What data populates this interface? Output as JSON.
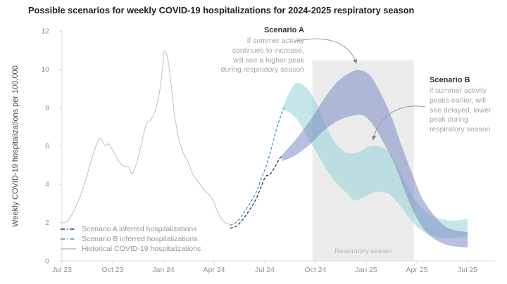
{
  "title": "Possible scenarios for weekly COVID-19 hospitalizations for 2024-2025 respiratory season",
  "annotations": {
    "scenario_a": {
      "title": "Scenario A",
      "body": "if summer activity\ncontinues to increase,\nwill see a higher peak\nduring respiratory season"
    },
    "scenario_b": {
      "title": "Scenario B",
      "body": "if summer activity\npeaks earlier, will\nsee delayed, lower\npeak during\nrespiratory season"
    }
  },
  "legend": {
    "items": [
      {
        "label": "Scenario A inferred hospitalizations",
        "color": "#22344a",
        "style": "dashed"
      },
      {
        "label": "Scenario B inferred hospitalizations",
        "color": "#4796c2",
        "style": "dashed"
      },
      {
        "label": "Historical COVID-19 hospitalizations",
        "color": "#b9bcbe",
        "style": "solid"
      }
    ]
  },
  "chart_data": {
    "type": "line",
    "title": "Possible scenarios for weekly COVID-19 hospitalizations for 2024-2025 respiratory season",
    "xlabel": "",
    "ylabel": "Weekly COVID-19 hospitalizations per 100,000",
    "x_unit": "months since Jul 2023",
    "ylim": [
      0,
      12
    ],
    "y_ticks": [
      0,
      2,
      4,
      6,
      8,
      10,
      12
    ],
    "x_ticks": [
      {
        "t": 0,
        "label": "Jul 23"
      },
      {
        "t": 3,
        "label": "Oct 23"
      },
      {
        "t": 6,
        "label": "Jan 24"
      },
      {
        "t": 9,
        "label": "Apr 24"
      },
      {
        "t": 12,
        "label": "Jul 24"
      },
      {
        "t": 15,
        "label": "Oct 24"
      },
      {
        "t": 18,
        "label": "Jan 25"
      },
      {
        "t": 21,
        "label": "Apr 25"
      },
      {
        "t": 24,
        "label": "Jul 25"
      }
    ],
    "respiratory_season": {
      "label": "Respiratory season",
      "t0": 14.82,
      "t1": 20.82,
      "color": "#ececec"
    },
    "series": [
      {
        "name": "Scenario B projected range",
        "type": "band",
        "color": "#8ed0d6",
        "opacity": 0.5,
        "top": [
          [
            13.1,
            8.1
          ],
          [
            13.8,
            9.25
          ],
          [
            14.5,
            9.0
          ],
          [
            15.0,
            8.3
          ],
          [
            15.5,
            7.3
          ],
          [
            16.0,
            6.4
          ],
          [
            16.5,
            5.85
          ],
          [
            17.0,
            5.6
          ],
          [
            17.6,
            5.7
          ],
          [
            18.1,
            5.95
          ],
          [
            18.6,
            6.0
          ],
          [
            19.2,
            5.8
          ],
          [
            19.7,
            5.2
          ],
          [
            20.2,
            4.3
          ],
          [
            20.8,
            3.3
          ],
          [
            21.3,
            2.75
          ],
          [
            21.9,
            2.35
          ],
          [
            22.6,
            2.15
          ],
          [
            23.3,
            2.1
          ],
          [
            24.0,
            2.2
          ]
        ],
        "bottom": [
          [
            13.1,
            7.9
          ],
          [
            13.8,
            7.5
          ],
          [
            14.5,
            6.5
          ],
          [
            15.1,
            5.6
          ],
          [
            15.7,
            4.7
          ],
          [
            16.3,
            4.0
          ],
          [
            16.9,
            3.5
          ],
          [
            17.3,
            3.15
          ],
          [
            17.8,
            3.3
          ],
          [
            18.4,
            3.55
          ],
          [
            18.9,
            3.6
          ],
          [
            19.4,
            3.45
          ],
          [
            19.9,
            3.0
          ],
          [
            20.5,
            2.3
          ],
          [
            21.1,
            1.7
          ],
          [
            21.8,
            1.35
          ],
          [
            22.6,
            1.2
          ],
          [
            23.3,
            1.2
          ],
          [
            24.0,
            1.3
          ]
        ]
      },
      {
        "name": "Scenario A projected range",
        "type": "band",
        "color": "#7c8cc4",
        "opacity": 0.55,
        "top": [
          [
            13.0,
            5.5
          ],
          [
            13.8,
            6.3
          ],
          [
            14.7,
            7.35
          ],
          [
            15.5,
            8.45
          ],
          [
            16.3,
            9.35
          ],
          [
            17.1,
            9.85
          ],
          [
            17.6,
            9.95
          ],
          [
            18.2,
            9.7
          ],
          [
            18.8,
            8.85
          ],
          [
            19.5,
            7.5
          ],
          [
            20.1,
            6.0
          ],
          [
            20.7,
            4.6
          ],
          [
            21.3,
            3.3
          ],
          [
            22.0,
            2.4
          ],
          [
            22.6,
            1.85
          ],
          [
            23.2,
            1.6
          ],
          [
            24.0,
            1.5
          ]
        ],
        "bottom": [
          [
            13.0,
            5.2
          ],
          [
            13.8,
            5.5
          ],
          [
            14.7,
            6.1
          ],
          [
            15.5,
            6.8
          ],
          [
            16.3,
            7.3
          ],
          [
            17.1,
            7.55
          ],
          [
            17.8,
            7.6
          ],
          [
            18.4,
            7.1
          ],
          [
            19.0,
            6.2
          ],
          [
            19.7,
            5.0
          ],
          [
            20.3,
            3.6
          ],
          [
            20.9,
            2.4
          ],
          [
            21.5,
            1.55
          ],
          [
            22.2,
            1.05
          ],
          [
            23.0,
            0.78
          ],
          [
            24.0,
            0.7
          ]
        ]
      },
      {
        "name": "Historical COVID-19 hospitalizations",
        "type": "line",
        "style": "solid",
        "color": "#bfbfbf",
        "points": [
          [
            0,
            1.95
          ],
          [
            0.35,
            2.1
          ],
          [
            0.7,
            2.6
          ],
          [
            1.05,
            3.3
          ],
          [
            1.4,
            4.2
          ],
          [
            1.75,
            5.3
          ],
          [
            2.1,
            6.2
          ],
          [
            2.3,
            6.4
          ],
          [
            2.55,
            6.0
          ],
          [
            2.75,
            6.1
          ],
          [
            3.05,
            5.7
          ],
          [
            3.35,
            5.2
          ],
          [
            3.65,
            4.95
          ],
          [
            3.95,
            4.9
          ],
          [
            4.15,
            4.55
          ],
          [
            4.45,
            5.2
          ],
          [
            4.75,
            6.3
          ],
          [
            5.0,
            7.15
          ],
          [
            5.25,
            7.35
          ],
          [
            5.5,
            7.8
          ],
          [
            5.75,
            8.7
          ],
          [
            5.95,
            10.0
          ],
          [
            6.05,
            10.95
          ],
          [
            6.25,
            10.6
          ],
          [
            6.45,
            9.3
          ],
          [
            6.65,
            7.7
          ],
          [
            6.9,
            6.4
          ],
          [
            7.2,
            5.6
          ],
          [
            7.45,
            5.2
          ],
          [
            7.75,
            4.5
          ],
          [
            8.05,
            4.15
          ],
          [
            8.4,
            3.7
          ],
          [
            8.85,
            3.3
          ],
          [
            9.3,
            2.4
          ],
          [
            9.65,
            2.0
          ],
          [
            9.95,
            1.9
          ]
        ]
      },
      {
        "name": "Scenario A inferred hospitalizations",
        "type": "line",
        "style": "dashed",
        "color": "#22344a",
        "points": [
          [
            9.95,
            1.7
          ],
          [
            10.3,
            1.8
          ],
          [
            10.6,
            2.05
          ],
          [
            10.9,
            2.4
          ],
          [
            11.2,
            2.8
          ],
          [
            11.5,
            3.25
          ],
          [
            11.8,
            3.9
          ],
          [
            12.05,
            4.4
          ],
          [
            12.3,
            4.5
          ],
          [
            12.6,
            4.9
          ],
          [
            12.85,
            5.3
          ],
          [
            13.0,
            5.45
          ]
        ]
      },
      {
        "name": "Scenario B inferred hospitalizations",
        "type": "line",
        "style": "dashed",
        "color": "#4796c2",
        "points": [
          [
            9.95,
            1.85
          ],
          [
            10.3,
            2.0
          ],
          [
            10.6,
            2.3
          ],
          [
            10.9,
            2.7
          ],
          [
            11.2,
            3.1
          ],
          [
            11.5,
            3.6
          ],
          [
            11.8,
            4.3
          ],
          [
            12.1,
            5.0
          ],
          [
            12.4,
            5.9
          ],
          [
            12.7,
            6.9
          ],
          [
            13.0,
            7.7
          ],
          [
            13.2,
            8.1
          ]
        ]
      }
    ]
  }
}
